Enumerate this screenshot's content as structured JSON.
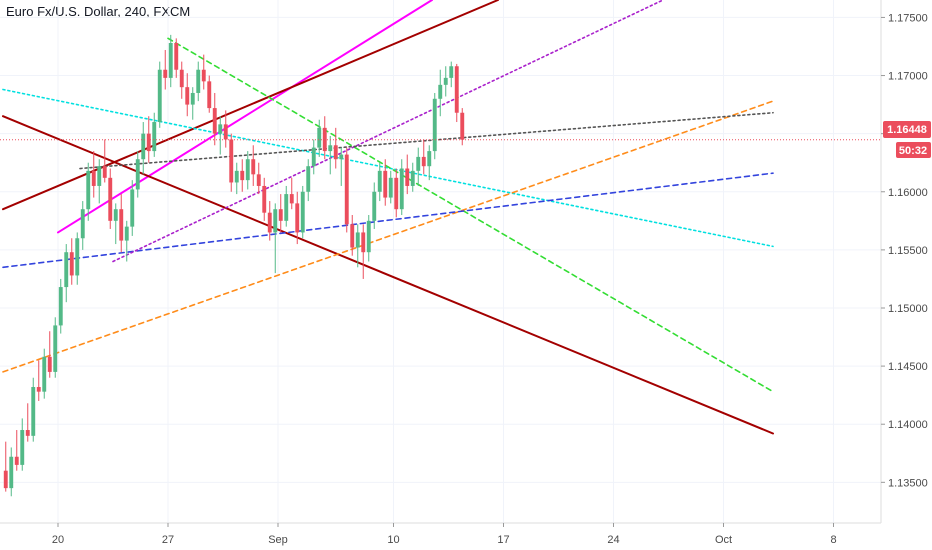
{
  "header": {
    "title": "Euro Fx/U.S. Dollar, 240, FXCM"
  },
  "price_badge": {
    "price": "1.16448",
    "countdown": "50:32"
  },
  "chart_data": {
    "type": "candlestick",
    "symbol": "Euro Fx/U.S. Dollar",
    "interval": "240",
    "source": "FXCM",
    "x_ticks": [
      "20",
      "27",
      "Sep",
      "10",
      "17",
      "24",
      "Oct",
      "8"
    ],
    "y_ticks": [
      "1.17500",
      "1.17000",
      "1.16500",
      "1.16000",
      "1.15500",
      "1.15000",
      "1.14500",
      "1.14000",
      "1.13500"
    ],
    "ylim": [
      1.1315,
      1.1765
    ],
    "last_price": 1.16448,
    "colors": {
      "up": "#53b987",
      "down": "#eb4d5c"
    },
    "candles": [
      [
        1.136,
        1.1385,
        1.1342,
        1.1345
      ],
      [
        1.1345,
        1.138,
        1.1338,
        1.1372
      ],
      [
        1.1372,
        1.1395,
        1.136,
        1.1365
      ],
      [
        1.1365,
        1.1405,
        1.136,
        1.1395
      ],
      [
        1.1395,
        1.1418,
        1.1385,
        1.139
      ],
      [
        1.139,
        1.144,
        1.1385,
        1.1432
      ],
      [
        1.1432,
        1.1455,
        1.142,
        1.1428
      ],
      [
        1.1428,
        1.1465,
        1.1422,
        1.1458
      ],
      [
        1.1458,
        1.148,
        1.144,
        1.1445
      ],
      [
        1.1445,
        1.1492,
        1.144,
        1.1485
      ],
      [
        1.1485,
        1.1525,
        1.1478,
        1.1518
      ],
      [
        1.1518,
        1.1555,
        1.1505,
        1.1548
      ],
      [
        1.1548,
        1.156,
        1.152,
        1.1528
      ],
      [
        1.1528,
        1.1565,
        1.152,
        1.156
      ],
      [
        1.156,
        1.1592,
        1.155,
        1.1585
      ],
      [
        1.1585,
        1.1625,
        1.1575,
        1.1618
      ],
      [
        1.1618,
        1.1635,
        1.1595,
        1.1605
      ],
      [
        1.1605,
        1.1628,
        1.159,
        1.1622
      ],
      [
        1.1622,
        1.1645,
        1.1608,
        1.1612
      ],
      [
        1.1612,
        1.162,
        1.1568,
        1.1575
      ],
      [
        1.1575,
        1.159,
        1.1555,
        1.1585
      ],
      [
        1.1585,
        1.1598,
        1.1548,
        1.1558
      ],
      [
        1.1558,
        1.1575,
        1.154,
        1.157
      ],
      [
        1.157,
        1.161,
        1.1562,
        1.1602
      ],
      [
        1.1602,
        1.1635,
        1.1595,
        1.1628
      ],
      [
        1.1628,
        1.166,
        1.1615,
        1.165
      ],
      [
        1.165,
        1.1665,
        1.1625,
        1.1635
      ],
      [
        1.1635,
        1.1668,
        1.163,
        1.166
      ],
      [
        1.166,
        1.1712,
        1.1655,
        1.1705
      ],
      [
        1.1705,
        1.1722,
        1.1688,
        1.1698
      ],
      [
        1.1698,
        1.1735,
        1.169,
        1.1728
      ],
      [
        1.1728,
        1.1732,
        1.1698,
        1.1705
      ],
      [
        1.1705,
        1.1712,
        1.168,
        1.169
      ],
      [
        1.169,
        1.1702,
        1.1665,
        1.1675
      ],
      [
        1.1675,
        1.169,
        1.1662,
        1.1685
      ],
      [
        1.1685,
        1.1712,
        1.1678,
        1.1705
      ],
      [
        1.1705,
        1.1718,
        1.1688,
        1.1695
      ],
      [
        1.1695,
        1.17,
        1.1668,
        1.1672
      ],
      [
        1.1672,
        1.1685,
        1.164,
        1.165
      ],
      [
        1.165,
        1.1665,
        1.1632,
        1.1658
      ],
      [
        1.1658,
        1.167,
        1.1638,
        1.1645
      ],
      [
        1.1645,
        1.165,
        1.16,
        1.1608
      ],
      [
        1.1608,
        1.1625,
        1.1598,
        1.1618
      ],
      [
        1.1618,
        1.1628,
        1.16,
        1.161
      ],
      [
        1.161,
        1.1635,
        1.1602,
        1.1628
      ],
      [
        1.1628,
        1.164,
        1.1605,
        1.1615
      ],
      [
        1.1615,
        1.1625,
        1.1598,
        1.1605
      ],
      [
        1.1605,
        1.1612,
        1.1575,
        1.1582
      ],
      [
        1.1582,
        1.1592,
        1.1558,
        1.1565
      ],
      [
        1.1565,
        1.159,
        1.153,
        1.1585
      ],
      [
        1.1585,
        1.1598,
        1.1565,
        1.1575
      ],
      [
        1.1575,
        1.1605,
        1.157,
        1.1598
      ],
      [
        1.1598,
        1.1612,
        1.1585,
        1.159
      ],
      [
        1.159,
        1.16,
        1.1555,
        1.1565
      ],
      [
        1.1565,
        1.1605,
        1.156,
        1.16
      ],
      [
        1.16,
        1.1628,
        1.1592,
        1.1622
      ],
      [
        1.1622,
        1.1645,
        1.1615,
        1.1638
      ],
      [
        1.1638,
        1.1662,
        1.163,
        1.1655
      ],
      [
        1.1655,
        1.1665,
        1.1628,
        1.1635
      ],
      [
        1.1635,
        1.1648,
        1.1615,
        1.164
      ],
      [
        1.164,
        1.1655,
        1.162,
        1.1628
      ],
      [
        1.1628,
        1.1638,
        1.1605,
        1.1632
      ],
      [
        1.1632,
        1.1638,
        1.1565,
        1.1572
      ],
      [
        1.1572,
        1.158,
        1.1545,
        1.1552
      ],
      [
        1.1552,
        1.1572,
        1.1535,
        1.1565
      ],
      [
        1.1565,
        1.1572,
        1.1525,
        1.1548
      ],
      [
        1.1548,
        1.158,
        1.154,
        1.1575
      ],
      [
        1.1575,
        1.1608,
        1.1568,
        1.16
      ],
      [
        1.16,
        1.1625,
        1.1592,
        1.1618
      ],
      [
        1.1618,
        1.1628,
        1.1588,
        1.1595
      ],
      [
        1.1595,
        1.1618,
        1.159,
        1.1612
      ],
      [
        1.1612,
        1.162,
        1.1578,
        1.1585
      ],
      [
        1.1585,
        1.1628,
        1.158,
        1.162
      ],
      [
        1.162,
        1.1632,
        1.1598,
        1.1605
      ],
      [
        1.1605,
        1.1625,
        1.16,
        1.1618
      ],
      [
        1.1618,
        1.1638,
        1.1605,
        1.163
      ],
      [
        1.163,
        1.1645,
        1.1615,
        1.1622
      ],
      [
        1.1622,
        1.164,
        1.161,
        1.1635
      ],
      [
        1.1635,
        1.1685,
        1.1628,
        1.168
      ],
      [
        1.168,
        1.1705,
        1.1665,
        1.1692
      ],
      [
        1.1692,
        1.1708,
        1.1682,
        1.1698
      ],
      [
        1.1698,
        1.1712,
        1.169,
        1.1708
      ],
      [
        1.1708,
        1.171,
        1.166,
        1.1668
      ],
      [
        1.1668,
        1.1672,
        1.164,
        1.16448
      ]
    ]
  },
  "drawings": [
    {
      "id": "pink-channel",
      "color": "#ff00ff",
      "style": "solid",
      "p1": [
        1.1565,
        10
      ],
      "p2": [
        1.1765,
        78
      ]
    },
    {
      "id": "darkred-upper",
      "color": "#a30000",
      "style": "solid",
      "p1": [
        1.1585,
        0
      ],
      "p2": [
        1.1765,
        90
      ]
    },
    {
      "id": "darkred-lower",
      "color": "#a30000",
      "style": "solid",
      "p1": [
        1.1665,
        0
      ],
      "p2": [
        1.1392,
        140
      ]
    },
    {
      "id": "cyan-trend",
      "color": "#00e0e0",
      "style": "dotted",
      "p1": [
        1.1688,
        0
      ],
      "p2": [
        1.1553,
        140
      ]
    },
    {
      "id": "green-trend",
      "color": "#33dd33",
      "style": "dashed",
      "p1": [
        1.1732,
        30
      ],
      "p2": [
        1.1428,
        140
      ]
    },
    {
      "id": "orange-trend",
      "color": "#ff8c1a",
      "style": "dashed",
      "p1": [
        1.1445,
        0
      ],
      "p2": [
        1.1678,
        140
      ]
    },
    {
      "id": "blue-trend",
      "color": "#3344dd",
      "style": "dashed",
      "p1": [
        1.1535,
        0
      ],
      "p2": [
        1.1616,
        140
      ]
    },
    {
      "id": "purple-dotted",
      "color": "#aa22cc",
      "style": "dotted",
      "p1": [
        1.154,
        20
      ],
      "p2": [
        1.1765,
        120
      ]
    },
    {
      "id": "gray-dotted",
      "color": "#555555",
      "style": "dotted",
      "p1": [
        1.162,
        14
      ],
      "p2": [
        1.1668,
        140
      ]
    }
  ]
}
